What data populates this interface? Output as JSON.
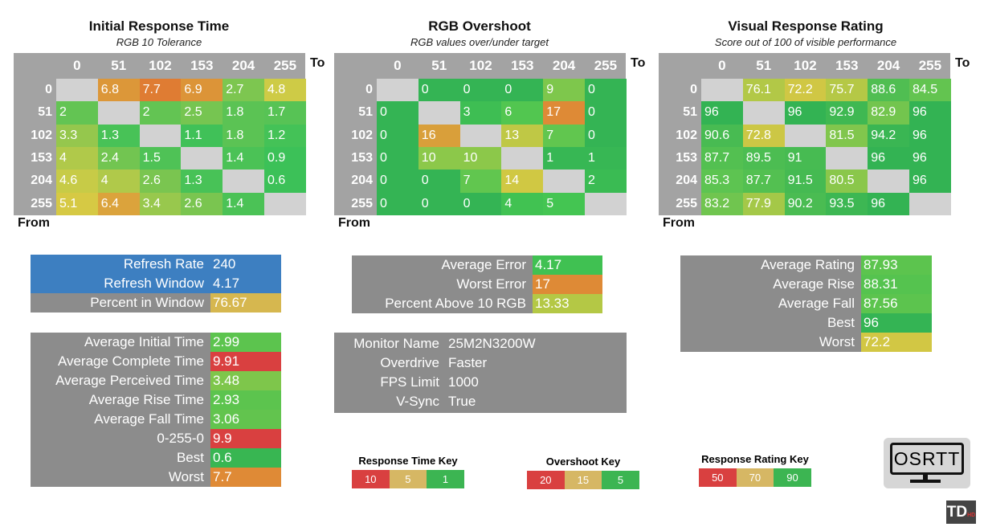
{
  "chart_data": [
    {
      "type": "heatmap",
      "title": "Initial Response Time",
      "subtitle": "RGB 10 Tolerance",
      "xlabel": "To",
      "ylabel": "From",
      "categories": [
        "0",
        "51",
        "102",
        "153",
        "204",
        "255"
      ],
      "scale": {
        "stops": [
          1,
          5,
          7.7,
          10
        ],
        "colors": [
          "#3cc158",
          "#d6cc45",
          "#df7c33",
          "#d94040"
        ]
      },
      "values": [
        [
          null,
          6.8,
          7.7,
          6.9,
          2.7,
          4.8
        ],
        [
          2,
          null,
          2,
          2.5,
          1.8,
          1.7
        ],
        [
          3.3,
          1.3,
          null,
          1.1,
          1.8,
          1.2
        ],
        [
          4,
          2.4,
          1.5,
          null,
          1.4,
          0.9
        ],
        [
          4.6,
          4,
          2.6,
          1.3,
          null,
          0.6
        ],
        [
          5.1,
          6.4,
          3.4,
          2.6,
          1.4,
          null
        ]
      ]
    },
    {
      "type": "heatmap",
      "title": "RGB Overshoot",
      "subtitle": "RGB values over/under target",
      "xlabel": "To",
      "ylabel": "From",
      "categories": [
        "0",
        "51",
        "102",
        "153",
        "204",
        "255"
      ],
      "scale": {
        "stops": [
          0,
          5,
          10,
          14,
          17,
          20
        ],
        "colors": [
          "#34b454",
          "#44c552",
          "#8cc84a",
          "#d0c843",
          "#de8a36",
          "#d94040"
        ]
      },
      "values": [
        [
          null,
          0,
          0,
          0,
          9,
          0
        ],
        [
          0,
          null,
          3,
          6,
          17,
          0
        ],
        [
          0,
          16,
          null,
          13,
          7,
          0
        ],
        [
          0,
          10,
          10,
          null,
          1,
          1
        ],
        [
          0,
          0,
          7,
          14,
          null,
          2
        ],
        [
          0,
          0,
          0,
          4,
          5,
          null
        ]
      ]
    },
    {
      "type": "heatmap",
      "title": "Visual Response Rating",
      "subtitle": "Score out of 100 of visible performance",
      "xlabel": "To",
      "ylabel": "From",
      "categories": [
        "0",
        "51",
        "102",
        "153",
        "204",
        "255"
      ],
      "scale": {
        "stops": [
          72,
          78,
          85,
          96
        ],
        "colors": [
          "#d2c744",
          "#a3c848",
          "#5ec451",
          "#33b353"
        ]
      },
      "values": [
        [
          null,
          76.1,
          72.2,
          75.7,
          88.6,
          84.5
        ],
        [
          96,
          null,
          96,
          92.9,
          82.9,
          96
        ],
        [
          90.6,
          72.8,
          null,
          81.5,
          94.2,
          96
        ],
        [
          87.7,
          89.5,
          91,
          null,
          96,
          96
        ],
        [
          85.3,
          87.7,
          91.5,
          80.5,
          null,
          96
        ],
        [
          83.2,
          77.9,
          90.2,
          93.5,
          96,
          null
        ]
      ]
    }
  ],
  "panels": {
    "refresh": [
      {
        "label": "Refresh Rate",
        "value": "240",
        "bg": "#3d7fc1",
        "vbg": "#3d7fc1"
      },
      {
        "label": "Refresh Window",
        "value": "4.17",
        "bg": "#3d7fc1",
        "vbg": "#3d7fc1"
      },
      {
        "label": "Percent in Window",
        "value": "76.67",
        "bg": "#8c8c8c",
        "vbg": "#d6b74f"
      }
    ],
    "times": [
      {
        "label": "Average Initial Time",
        "value": "2.99",
        "vbg": "#5cc44e"
      },
      {
        "label": "Average Complete Time",
        "value": "9.91",
        "vbg": "#d94040"
      },
      {
        "label": "Average Perceived Time",
        "value": "3.48",
        "vbg": "#7ec64b"
      },
      {
        "label": "Average Rise Time",
        "value": "2.93",
        "vbg": "#5cc44e"
      },
      {
        "label": "Average Fall Time",
        "value": "3.06",
        "vbg": "#62c44e"
      },
      {
        "label": "0-255-0",
        "value": "9.9",
        "vbg": "#d94040"
      },
      {
        "label": "Best",
        "value": "0.6",
        "vbg": "#38b652"
      },
      {
        "label": "Worst",
        "value": "7.7",
        "vbg": "#df8a36"
      }
    ],
    "overshoot": [
      {
        "label": "Average Error",
        "value": "4.17",
        "vbg": "#40c152"
      },
      {
        "label": "Worst Error",
        "value": "17",
        "vbg": "#de8a36"
      },
      {
        "label": "Percent Above 10 RGB",
        "value": "13.33",
        "vbg": "#b4c845"
      }
    ],
    "monitor": [
      {
        "label": "Monitor Name",
        "value": "25M2N3200W"
      },
      {
        "label": "Overdrive",
        "value": "Faster"
      },
      {
        "label": "FPS Limit",
        "value": "1000"
      },
      {
        "label": "V-Sync",
        "value": "True"
      }
    ],
    "rating": [
      {
        "label": "Average Rating",
        "value": "87.93",
        "vbg": "#5cc44e"
      },
      {
        "label": "Average Rise",
        "value": "88.31",
        "vbg": "#55c34f"
      },
      {
        "label": "Average Fall",
        "value": "87.56",
        "vbg": "#5cc44e"
      },
      {
        "label": "Best",
        "value": "96",
        "vbg": "#34b454"
      },
      {
        "label": "Worst",
        "value": "72.2",
        "vbg": "#d2c744"
      }
    ]
  },
  "keys": [
    {
      "title": "Response Time Key",
      "items": [
        {
          "label": "10",
          "color": "#d94040"
        },
        {
          "label": "5",
          "color": "#d6b764"
        },
        {
          "label": "1",
          "color": "#3cb552"
        }
      ]
    },
    {
      "title": "Overshoot Key",
      "items": [
        {
          "label": "20",
          "color": "#d94040"
        },
        {
          "label": "15",
          "color": "#d6b764"
        },
        {
          "label": "5",
          "color": "#3cb552"
        }
      ]
    },
    {
      "title": "Response Rating Key",
      "items": [
        {
          "label": "50",
          "color": "#d94040"
        },
        {
          "label": "70",
          "color": "#d6b764"
        },
        {
          "label": "90",
          "color": "#3cb552"
        }
      ]
    }
  ],
  "logo": {
    "text": "OSRTT",
    "badge": "TD",
    "badge_sub": "HD"
  }
}
